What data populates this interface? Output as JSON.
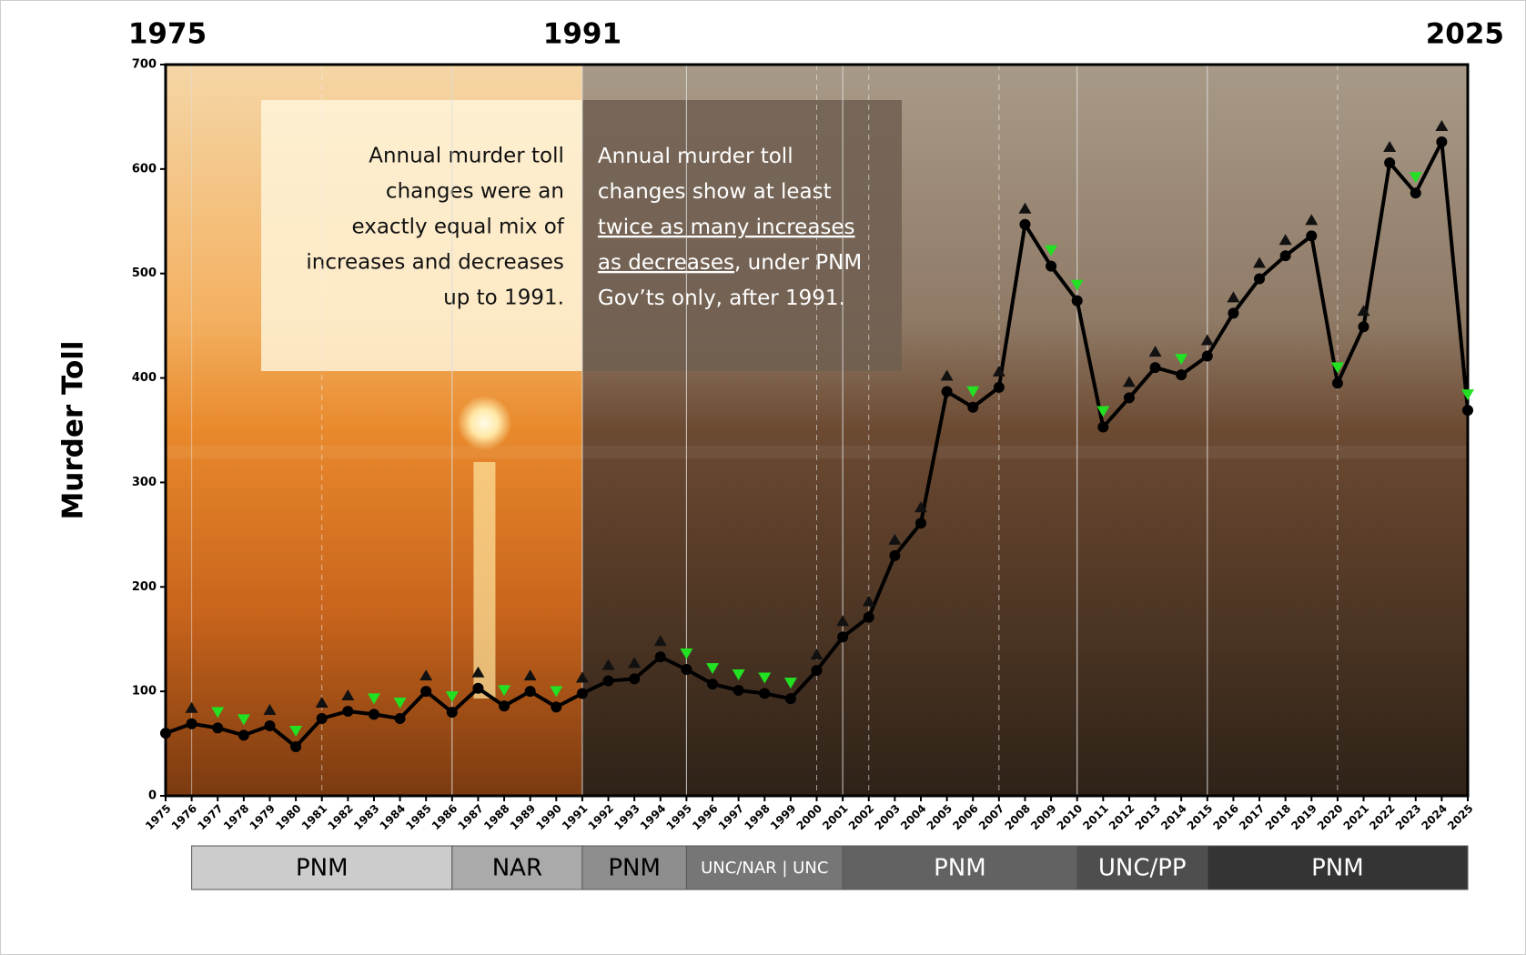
{
  "chart_data": {
    "type": "line",
    "period_labels": [
      "1975",
      "1991",
      "2025"
    ],
    "ylabel": "Murder Toll",
    "categories": [
      "1975",
      "1976",
      "1977",
      "1978",
      "1979",
      "1980",
      "1981",
      "1982",
      "1983",
      "1984",
      "1985",
      "1986",
      "1987",
      "1988",
      "1989",
      "1990",
      "1991",
      "1992",
      "1993",
      "1994",
      "1995",
      "1996",
      "1997",
      "1998",
      "1999",
      "2000",
      "2001",
      "2002",
      "2003",
      "2004",
      "2005",
      "2006",
      "2007",
      "2008",
      "2009",
      "2010",
      "2011",
      "2012",
      "2013",
      "2014",
      "2015",
      "2016",
      "2017",
      "2018",
      "2019",
      "2020",
      "2021",
      "2022",
      "2023",
      "2024",
      "2025"
    ],
    "values": [
      60,
      69,
      65,
      58,
      67,
      47,
      74,
      81,
      78,
      74,
      100,
      80,
      103,
      86,
      100,
      85,
      98,
      110,
      112,
      133,
      121,
      107,
      101,
      98,
      93,
      120,
      152,
      171,
      230,
      261,
      387,
      372,
      391,
      547,
      507,
      474,
      353,
      381,
      410,
      403,
      421,
      462,
      495,
      517,
      536,
      395,
      449,
      606,
      577,
      626,
      369
    ],
    "color": "#000000",
    "increase_color": "#111111",
    "decrease_color": "#22e022",
    "ylim": [
      0,
      700
    ],
    "yticks": [
      0,
      100,
      200,
      300,
      400,
      500,
      600,
      700
    ],
    "dashed_lines": [
      "1981",
      "2000",
      "2002",
      "2007",
      "2020"
    ],
    "governments": [
      {
        "label": "PNM",
        "from": "1976",
        "to": "1986",
        "color": "#cccccc",
        "text_color": "#000000"
      },
      {
        "label": "NAR",
        "from": "1986",
        "to": "1991",
        "color": "#aaaaaa",
        "text_color": "#000000"
      },
      {
        "label": "PNM",
        "from": "1991",
        "to": "1995",
        "color": "#8e8e8e",
        "text_color": "#000000"
      },
      {
        "label": "UNC/NAR | UNC",
        "from": "1995",
        "to": "2001",
        "color": "#767676",
        "text_color": "#ffffff"
      },
      {
        "label": "PNM",
        "from": "2001",
        "to": "2010",
        "color": "#626262",
        "text_color": "#ffffff"
      },
      {
        "label": "UNC/PP",
        "from": "2010",
        "to": "2015",
        "color": "#4e4e4e",
        "text_color": "#ffffff"
      },
      {
        "label": "PNM",
        "from": "2015",
        "to": "2025",
        "color": "#343434",
        "text_color": "#ffffff"
      }
    ],
    "annotation_left": [
      "Annual murder toll",
      "changes were an",
      "exactly equal mix of",
      "increases and decreases",
      "up to 1991."
    ],
    "annotation_right": [
      [
        {
          "text": "Annual murder toll"
        }
      ],
      [
        {
          "text": "changes show at least"
        }
      ],
      [
        {
          "text": "twice as many increases",
          "underline": true
        }
      ],
      [
        {
          "text": "as decreases",
          "underline": true
        },
        {
          "text": ", under PNM"
        }
      ],
      [
        {
          "text": "Gov’ts only, after 1991."
        }
      ]
    ]
  }
}
